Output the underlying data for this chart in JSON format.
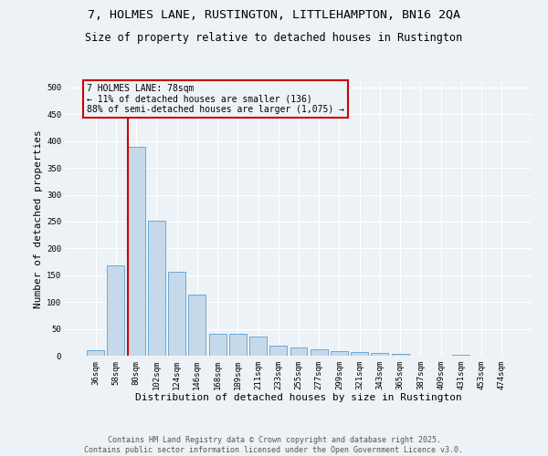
{
  "title_line1": "7, HOLMES LANE, RUSTINGTON, LITTLEHAMPTON, BN16 2QA",
  "title_line2": "Size of property relative to detached houses in Rustington",
  "xlabel": "Distribution of detached houses by size in Rustington",
  "ylabel": "Number of detached properties",
  "categories": [
    "36sqm",
    "58sqm",
    "80sqm",
    "102sqm",
    "124sqm",
    "146sqm",
    "168sqm",
    "189sqm",
    "211sqm",
    "233sqm",
    "255sqm",
    "277sqm",
    "299sqm",
    "321sqm",
    "343sqm",
    "365sqm",
    "387sqm",
    "409sqm",
    "431sqm",
    "453sqm",
    "474sqm"
  ],
  "values": [
    10,
    168,
    390,
    252,
    157,
    114,
    40,
    40,
    35,
    18,
    16,
    12,
    8,
    7,
    5,
    4,
    0,
    0,
    1,
    0,
    0
  ],
  "bar_color": "#c6d9ea",
  "bar_edge_color": "#6aaad4",
  "vline_index": 2,
  "vline_color": "#cc0000",
  "annotation_text": "7 HOLMES LANE: 78sqm\n← 11% of detached houses are smaller (136)\n88% of semi-detached houses are larger (1,075) →",
  "annotation_box_edgecolor": "#cc0000",
  "ylim": [
    0,
    510
  ],
  "yticks": [
    0,
    50,
    100,
    150,
    200,
    250,
    300,
    350,
    400,
    450,
    500
  ],
  "footer_line1": "Contains HM Land Registry data © Crown copyright and database right 2025.",
  "footer_line2": "Contains public sector information licensed under the Open Government Licence v3.0.",
  "bg_color": "#edf2f7",
  "title_fontsize": 9.5,
  "subtitle_fontsize": 8.5,
  "axis_label_fontsize": 8,
  "tick_fontsize": 6.5,
  "annotation_fontsize": 7,
  "footer_fontsize": 6
}
